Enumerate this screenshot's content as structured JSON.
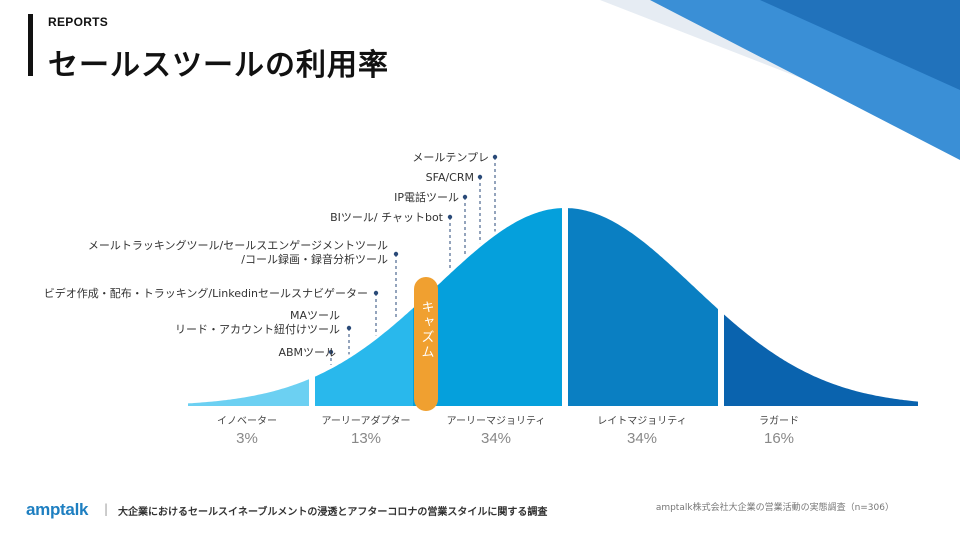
{
  "header": {
    "section": "REPORTS",
    "title": "セールスツールの利用率"
  },
  "tools": [
    "メールテンプレ",
    "SFA/CRM",
    "IP電話ツール",
    "BIツール/ チャットbot",
    "メールトラッキングツール/セールスエンゲージメントツール",
    "/コール録画・録音分析ツール",
    "ビデオ作成・配布・トラッキング/Linkedinセールスナビゲーター",
    "MAツール",
    "リード・アカウント紐付けツール",
    "ABMツール"
  ],
  "chasm_label": "キャズム",
  "segments": [
    {
      "label": "イノベーター",
      "percent": "3%"
    },
    {
      "label": "アーリーアダプター",
      "percent": "13%"
    },
    {
      "label": "アーリーマジョリティ",
      "percent": "34%"
    },
    {
      "label": "レイトマジョリティ",
      "percent": "34%"
    },
    {
      "label": "ラガード",
      "percent": "16%"
    }
  ],
  "colors": {
    "innovator": "#6cd0f2",
    "early_adopter": "#29b8ec",
    "early_majority": "#05a0dc",
    "late_majority": "#0a7fc2",
    "laggard": "#0a63ae",
    "chasm": "#f0a030",
    "marker": "#2a4a78",
    "brand": "#1e7fc1"
  },
  "footer": {
    "logo": "amptalk",
    "divider": "|",
    "left": "大企業におけるセールスイネーブルメントの浸透とアフターコロナの営業スタイルに関する調査",
    "right": "amptalk株式会社大企業の営業活動の実態調査（n=306）"
  }
}
